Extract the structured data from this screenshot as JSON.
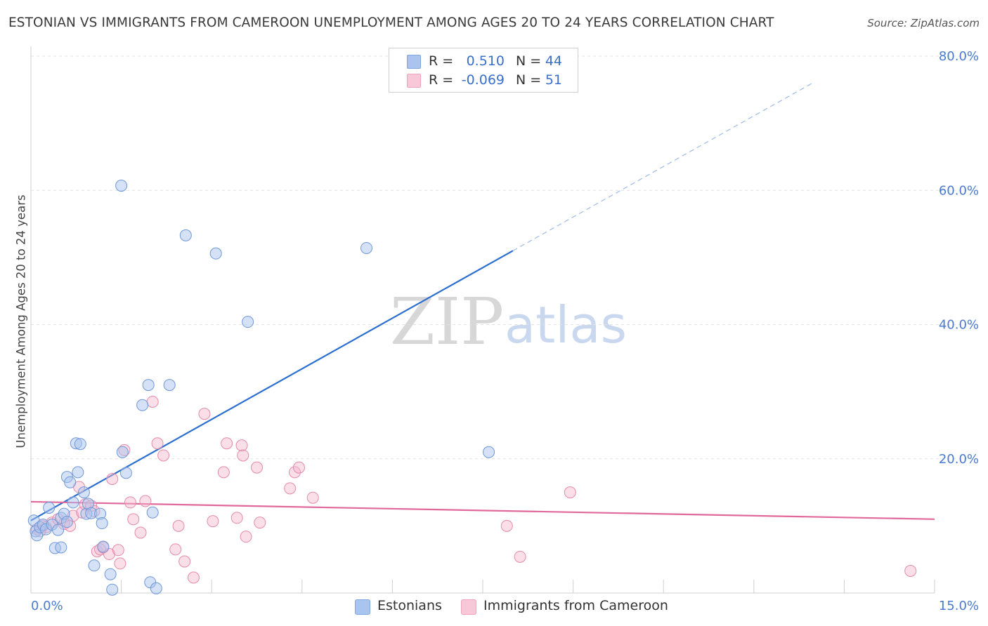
{
  "title": "ESTONIAN VS IMMIGRANTS FROM CAMEROON UNEMPLOYMENT AMONG AGES 20 TO 24 YEARS CORRELATION CHART",
  "source": "Source: ZipAtlas.com",
  "watermark": {
    "zip": "ZIP",
    "atlas": "atlas"
  },
  "legend": {
    "rows": [
      {
        "r_label": "R =",
        "r_value": "0.510",
        "n_label": "N =",
        "n_value": "44"
      },
      {
        "r_label": "R =",
        "r_value": "-0.069",
        "n_label": "N =",
        "n_value": "51"
      }
    ]
  },
  "bottom_legend": {
    "estonians": "Estonians",
    "cameroon": "Immigrants from Cameroon"
  },
  "chart_data": {
    "type": "scatter",
    "title": "ESTONIAN VS IMMIGRANTS FROM CAMEROON UNEMPLOYMENT AMONG AGES 20 TO 24 YEARS CORRELATION CHART",
    "xlabel": "",
    "ylabel": "Unemployment Among Ages 20 to 24 years",
    "xlim": [
      0,
      15
    ],
    "ylim": [
      0,
      80
    ],
    "x_tick_labels": [
      "0.0%",
      "15.0%"
    ],
    "y_tick_labels": [
      "20.0%",
      "40.0%",
      "60.0%",
      "80.0%"
    ],
    "y_ticks": [
      20,
      40,
      60,
      80
    ],
    "colors": {
      "estonians": "#a9c4ee",
      "estonians_line": "#2a6fd0",
      "cameroon": "#f5b6cb",
      "cameroon_line": "#e0699a"
    },
    "series": [
      {
        "name": "Estonians",
        "points": [
          [
            0.05,
            10.8
          ],
          [
            0.08,
            9.2
          ],
          [
            0.1,
            8.6
          ],
          [
            0.15,
            9.8
          ],
          [
            0.2,
            10.2
          ],
          [
            0.25,
            9.5
          ],
          [
            0.3,
            12.7
          ],
          [
            0.35,
            10.2
          ],
          [
            0.4,
            6.7
          ],
          [
            0.45,
            9.4
          ],
          [
            0.5,
            11.2
          ],
          [
            0.5,
            6.8
          ],
          [
            0.55,
            11.8
          ],
          [
            0.6,
            10.6
          ],
          [
            0.6,
            17.3
          ],
          [
            0.65,
            16.5
          ],
          [
            0.7,
            13.5
          ],
          [
            0.75,
            22.3
          ],
          [
            0.78,
            18.0
          ],
          [
            0.82,
            22.2
          ],
          [
            0.88,
            15.0
          ],
          [
            0.92,
            11.8
          ],
          [
            0.95,
            13.3
          ],
          [
            1.0,
            11.9
          ],
          [
            1.05,
            4.1
          ],
          [
            1.15,
            11.8
          ],
          [
            1.18,
            10.4
          ],
          [
            1.2,
            6.9
          ],
          [
            1.32,
            2.8
          ],
          [
            1.35,
            0.5
          ],
          [
            1.5,
            60.7
          ],
          [
            1.52,
            21.0
          ],
          [
            1.58,
            17.9
          ],
          [
            1.85,
            28.0
          ],
          [
            1.95,
            31.0
          ],
          [
            1.98,
            1.6
          ],
          [
            2.02,
            12.0
          ],
          [
            2.08,
            0.7
          ],
          [
            2.3,
            31.0
          ],
          [
            2.57,
            53.3
          ],
          [
            3.07,
            50.6
          ],
          [
            3.6,
            40.4
          ],
          [
            5.57,
            51.4
          ],
          [
            7.6,
            21.0
          ]
        ]
      },
      {
        "name": "Immigrants from Cameroon",
        "points": [
          [
            0.1,
            9.5
          ],
          [
            0.2,
            10.0
          ],
          [
            0.25,
            9.8
          ],
          [
            0.35,
            10.5
          ],
          [
            0.45,
            11.0
          ],
          [
            0.55,
            10.3
          ],
          [
            0.65,
            10.0
          ],
          [
            0.7,
            11.5
          ],
          [
            0.8,
            15.8
          ],
          [
            0.85,
            12.0
          ],
          [
            0.9,
            13.2
          ],
          [
            1.0,
            13.0
          ],
          [
            1.05,
            12.2
          ],
          [
            1.1,
            6.2
          ],
          [
            1.15,
            6.5
          ],
          [
            1.2,
            6.8
          ],
          [
            1.3,
            5.8
          ],
          [
            1.35,
            17.0
          ],
          [
            1.45,
            6.4
          ],
          [
            1.48,
            4.4
          ],
          [
            1.55,
            21.3
          ],
          [
            1.65,
            13.5
          ],
          [
            1.7,
            11.0
          ],
          [
            1.82,
            9.0
          ],
          [
            1.9,
            13.7
          ],
          [
            2.02,
            28.5
          ],
          [
            2.1,
            22.3
          ],
          [
            2.2,
            20.5
          ],
          [
            2.4,
            6.5
          ],
          [
            2.45,
            10.0
          ],
          [
            2.55,
            4.7
          ],
          [
            2.7,
            2.3
          ],
          [
            2.88,
            26.7
          ],
          [
            3.02,
            10.7
          ],
          [
            3.2,
            18.0
          ],
          [
            3.25,
            22.3
          ],
          [
            3.42,
            11.2
          ],
          [
            3.5,
            22.0
          ],
          [
            3.52,
            20.5
          ],
          [
            3.57,
            8.4
          ],
          [
            3.75,
            18.7
          ],
          [
            3.8,
            10.5
          ],
          [
            4.3,
            15.6
          ],
          [
            4.38,
            18.0
          ],
          [
            4.45,
            18.7
          ],
          [
            4.68,
            14.2
          ],
          [
            7.9,
            10.0
          ],
          [
            8.12,
            5.4
          ],
          [
            8.95,
            15.0
          ],
          [
            14.6,
            3.3
          ],
          [
            0.15,
            9.2
          ]
        ]
      }
    ],
    "trend_lines": [
      {
        "name": "Estonians",
        "x0": 0,
        "y0": 10.8,
        "x1": 8.0,
        "y1": 51.0,
        "extend_to_x": 13.0,
        "style": "solid-then-dashed"
      },
      {
        "name": "Immigrants from Cameroon",
        "x0": 0,
        "y0": 13.6,
        "x1": 15.0,
        "y1": 11.0,
        "style": "solid"
      }
    ]
  }
}
